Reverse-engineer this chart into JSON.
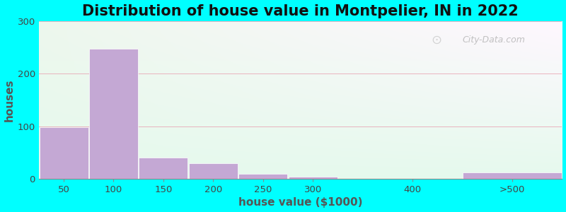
{
  "title": "Distribution of house value in Montpelier, IN in 2022",
  "xlabel": "house value ($1000)",
  "ylabel": "houses",
  "bar_color": "#c4a8d4",
  "background_outer": "#00FFFF",
  "grid_color": "#e8a0b0",
  "ylim": [
    0,
    300
  ],
  "yticks": [
    0,
    100,
    200,
    300
  ],
  "xtick_positions": [
    50,
    100,
    150,
    200,
    250,
    300,
    400,
    500
  ],
  "xtick_labels": [
    "50",
    "100",
    "150",
    "200",
    "250",
    "300",
    "400",
    ">500"
  ],
  "bar_lefts": [
    25,
    75,
    125,
    175,
    225,
    275,
    375,
    450
  ],
  "bar_widths": [
    50,
    50,
    50,
    50,
    50,
    50,
    50,
    100
  ],
  "bar_values": [
    98,
    248,
    40,
    30,
    10,
    5,
    0,
    13
  ],
  "xlim": [
    25,
    550
  ],
  "title_fontsize": 15,
  "axis_label_fontsize": 11,
  "watermark_text": "City-Data.com"
}
